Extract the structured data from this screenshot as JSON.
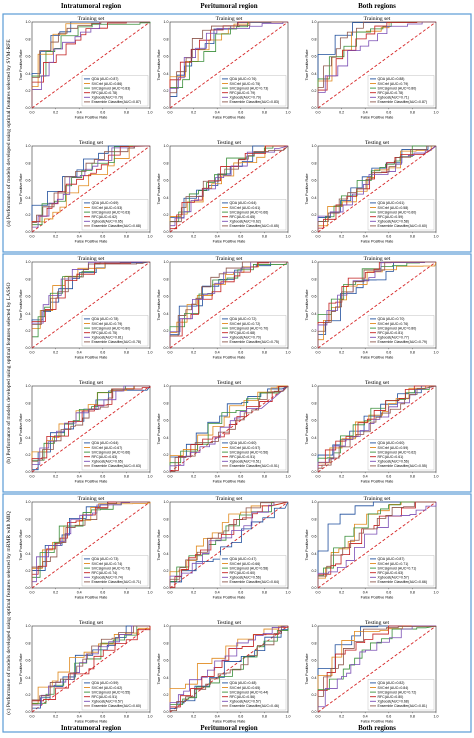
{
  "columns": [
    "Intratumoral region",
    "Peritumoral region",
    "Both regions"
  ],
  "section_captions": [
    "(a) Performance of models developed using optimal features selected by SVM-RFE",
    "(b) Performance of models developed using optimal features selected by LASSO",
    "(c) Performance of models developed using optimal features selected by mRMR with MIQ"
  ],
  "axis": {
    "xlabel": "False Positive Rate",
    "ylabel": "True Positive Rate",
    "ticks": [
      "0.0",
      "0.2",
      "0.4",
      "0.6",
      "0.8",
      "1.0"
    ]
  },
  "colors": {
    "QDA": "#1f4e9c",
    "SVCrbf": "#e08a1e",
    "SVCsigmoid": "#3a8f3a",
    "RFC": "#c21f1f",
    "Xgboost": "#7b4fb5",
    "Ensemble": "#8c564b",
    "chance": "#d62728",
    "section_border": "#5b9bd5"
  },
  "chart_data": [
    {
      "type": "line",
      "section": "a",
      "region": "Intratumoral region",
      "title": "Training set",
      "legend": [
        "QDA (AUC=0.87)",
        "SVCrbf (AUC=0.86)",
        "SVCsigmoid (AUC=0.83)",
        "RFC(AUC=0.78)",
        "Xgboost(AUC=0.79)",
        "Ensemble Classifier(AUC=0.87)"
      ]
    },
    {
      "type": "line",
      "section": "a",
      "region": "Peritumoral region",
      "title": "Training set",
      "legend": [
        "QDA (AUC=0.76)",
        "SVCrbf (AUC=0.75)",
        "SVCsigmoid (AUC=0.73)",
        "RFC(AUC=0.79)",
        "Xgboost(AUC=0.79)",
        "Ensemble Classifier(AUC=0.83)"
      ]
    },
    {
      "type": "line",
      "section": "a",
      "region": "Both regions",
      "title": "Training set",
      "legend": [
        "QDA (AUC=0.88)",
        "SVCrbf (AUC=0.79)",
        "SVCsigmoid (AUC=0.80)",
        "RFC(AUC=0.78)",
        "Xgboost(AUC=0.71)",
        "Ensemble Classifier(AUC=0.87)"
      ]
    },
    {
      "type": "line",
      "section": "a",
      "region": "Intratumoral region",
      "title": "Testing set",
      "legend": [
        "QDA (AUC=0.69)",
        "SVCrbf (AUC=0.53)",
        "SVCsigmoid (AUC=0.63)",
        "RFC(AUC=0.62)",
        "Xgboost(AUC=0.65)",
        "Ensemble Classifier(AUC=0.68)"
      ]
    },
    {
      "type": "line",
      "section": "a",
      "region": "Peritumoral region",
      "title": "Testing set",
      "legend": [
        "QDA (AUC=0.64)",
        "SVCrbf (AUC=0.61)",
        "SVCsigmoid (AUC=0.66)",
        "RFC(AUC=0.65)",
        "Xgboost(AUC=0.62)",
        "Ensemble Classifier(AUC=0.65)"
      ]
    },
    {
      "type": "line",
      "section": "a",
      "region": "Both regions",
      "title": "Testing set",
      "legend": [
        "QDA (AUC=0.61)",
        "SVCrbf (AUC=0.58)",
        "SVCsigmoid (AUC=0.60)",
        "RFC(AUC=0.59)",
        "Xgboost(AUC=0.58)",
        "Ensemble Classifier(AUC=0.60)"
      ]
    },
    {
      "type": "line",
      "section": "b",
      "region": "Intratumoral region",
      "title": "Training set",
      "legend": [
        "QDA (AUC=0.78)",
        "SVCrbf (AUC=0.79)",
        "SVCsigmoid (AUC=0.80)",
        "RFC(AUC=0.75)",
        "Xgboost(AUC=0.81)",
        "Ensemble Classifier(AUC=0.78)"
      ]
    },
    {
      "type": "line",
      "section": "b",
      "region": "Peritumoral region",
      "title": "Training set",
      "legend": [
        "QDA (AUC=0.72)",
        "SVCrbf (AUC=0.72)",
        "SVCsigmoid (AUC=0.70)",
        "RFC(AUC=0.68)",
        "Xgboost(AUC=0.70)",
        "Ensemble Classifier(AUC=0.75)"
      ]
    },
    {
      "type": "line",
      "section": "b",
      "region": "Both regions",
      "title": "Training set",
      "legend": [
        "QDA (AUC=0.70)",
        "SVCrbf (AUC=0.76)",
        "SVCsigmoid (AUC=0.80)",
        "RFC(AUC=0.81)",
        "Xgboost(AUC=0.77)",
        "Ensemble Classifier(AUC=0.79)"
      ]
    },
    {
      "type": "line",
      "section": "b",
      "region": "Intratumoral region",
      "title": "Testing set",
      "legend": [
        "QDA (AUC=0.64)",
        "SVCrbf (AUC=0.67)",
        "SVCsigmoid (AUC=0.66)",
        "RFC(AUC=0.63)",
        "Xgboost(AUC=0.65)",
        "Ensemble Classifier(AUC=0.63)"
      ]
    },
    {
      "type": "line",
      "section": "b",
      "region": "Peritumoral region",
      "title": "Testing set",
      "legend": [
        "QDA (AUC=0.60)",
        "SVCrbf (AUC=0.57)",
        "SVCsigmoid (AUC=0.56)",
        "RFC(AUC=0.51)",
        "Xgboost(AUC=0.51)",
        "Ensemble Classifier(AUC=0.51)"
      ]
    },
    {
      "type": "line",
      "section": "b",
      "region": "Both regions",
      "title": "Testing set",
      "legend": [
        "QDA (AUC=0.60)",
        "SVCrbf (AUC=0.59)",
        "SVCsigmoid (AUC=0.62)",
        "RFC(AUC=0.61)",
        "Xgboost(AUC=0.56)",
        "Ensemble Classifier(AUC=0.55)"
      ]
    },
    {
      "type": "line",
      "section": "c",
      "region": "Intratumoral region",
      "title": "Training set",
      "legend": [
        "QDA (AUC=0.73)",
        "SVCrbf (AUC=0.74)",
        "SVCsigmoid (AUC=0.73)",
        "RFC(AUC=0.74)",
        "Xgboost(AUC=0.74)",
        "Ensemble Classifier(AUC=0.71)"
      ]
    },
    {
      "type": "line",
      "section": "c",
      "region": "Peritumoral region",
      "title": "Training set",
      "legend": [
        "QDA (AUC=0.47)",
        "SVCrbf (AUC=0.66)",
        "SVCsigmoid (AUC=0.58)",
        "RFC(AUC=0.60)",
        "Xgboost(AUC=0.56)",
        "Ensemble Classifier(AUC=0.64)"
      ]
    },
    {
      "type": "line",
      "section": "c",
      "region": "Both regions",
      "title": "Training set",
      "legend": [
        "QDA (AUC=0.87)",
        "SVCrbf (AUC=0.71)",
        "SVCsigmoid (AUC=0.71)",
        "RFC(AUC=0.63)",
        "Xgboost(AUC=0.57)",
        "Ensemble Classifier(AUC=0.66)"
      ]
    },
    {
      "type": "line",
      "section": "c",
      "region": "Intratumoral region",
      "title": "Testing set",
      "legend": [
        "QDA (AUC=0.59)",
        "SVCrbf (AUC=0.62)",
        "SVCsigmoid (AUC=0.55)",
        "RFC(AUC=0.51)",
        "Xgboost(AUC=0.57)",
        "Ensemble Classifier(AUC=0.60)"
      ]
    },
    {
      "type": "line",
      "section": "c",
      "region": "Peritumoral region",
      "title": "Testing set",
      "legend": [
        "QDA (AUC=0.48)",
        "SVCrbf (AUC=0.65)",
        "SVCsigmoid (AUC=0.44)",
        "RFC(AUC=0.56)",
        "Xgboost(AUC=0.57)",
        "Ensemble Classifier(AUC=0.46)"
      ]
    },
    {
      "type": "line",
      "section": "c",
      "region": "Both regions",
      "title": "Testing set",
      "legend": [
        "QDA (AUC=0.82)",
        "SVCrbf (AUC=0.84)",
        "SVCsigmoid (AUC=0.72)",
        "RFC(AUC=0.80)",
        "Xgboost(AUC=0.68)",
        "Ensemble Classifier(AUC=0.81)"
      ]
    }
  ]
}
